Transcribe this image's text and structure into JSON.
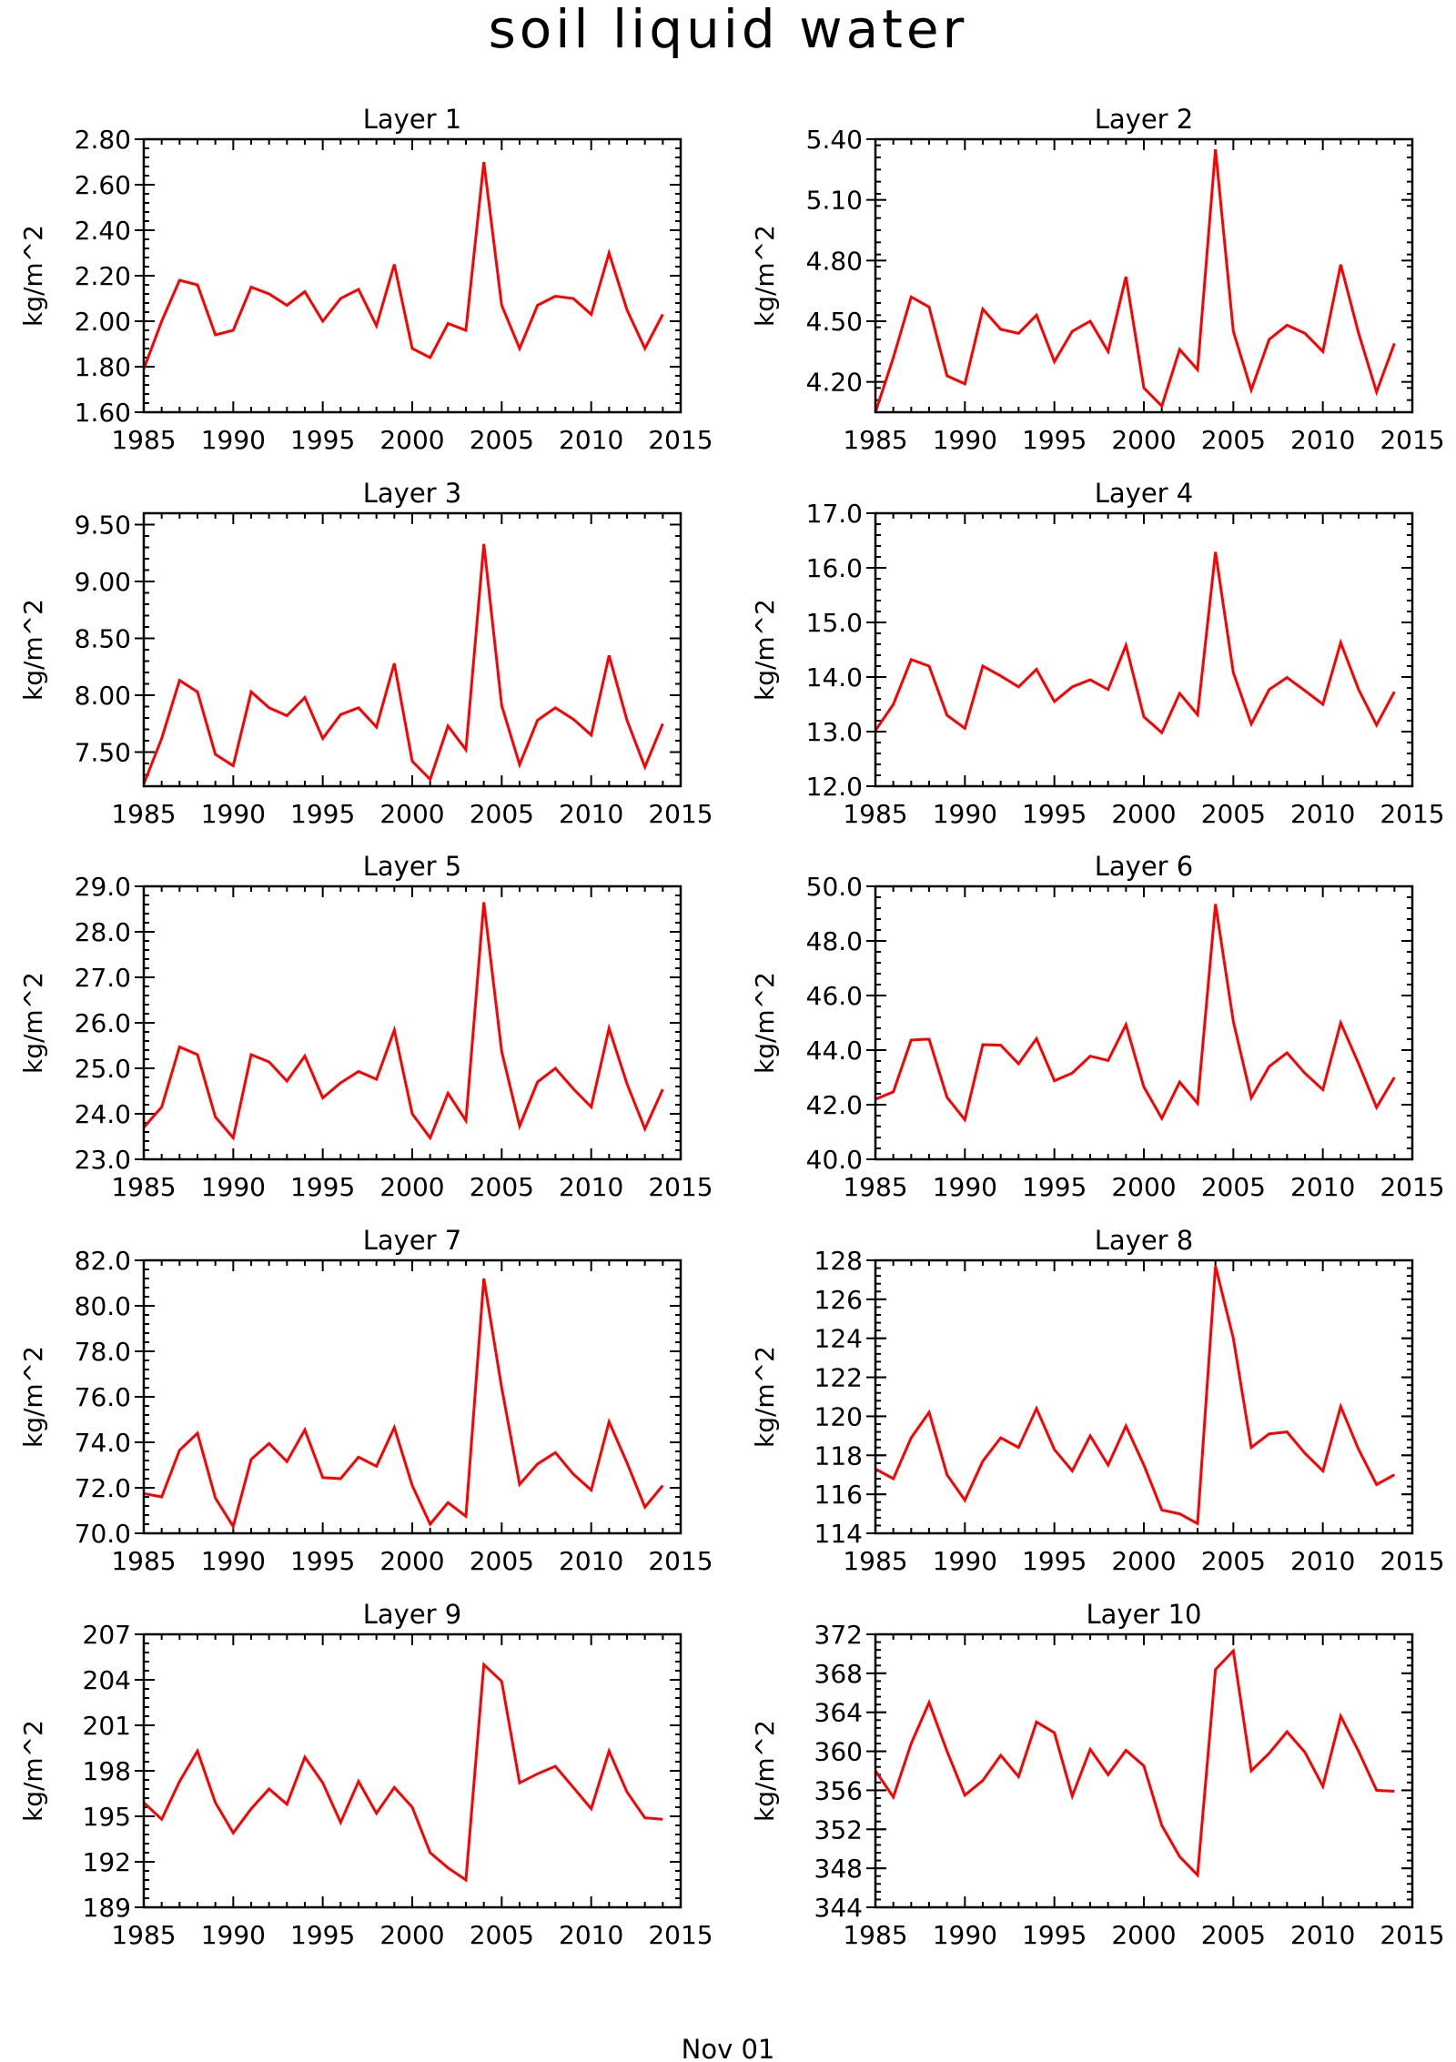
{
  "figure": {
    "title": "soil liquid water",
    "footer": "Nov 01"
  },
  "chart_data": [
    {
      "type": "line",
      "title": "Layer 1",
      "ylabel": "kg/m^2",
      "xlim": [
        1985,
        2015
      ],
      "ylim": [
        1.6,
        2.8
      ],
      "xticks": [
        1985,
        1990,
        1995,
        2000,
        2005,
        2010,
        2015
      ],
      "xtick_labels": [
        "1985",
        "1990",
        "1995",
        "2000",
        "2005",
        "2010",
        "2015"
      ],
      "yticks": [
        1.6,
        1.8,
        2.0,
        2.2,
        2.4,
        2.6,
        2.8
      ],
      "ytick_labels": [
        "1.60",
        "1.80",
        "2.00",
        "2.20",
        "2.40",
        "2.60",
        "2.80"
      ],
      "series": [
        {
          "color": "#ff0000",
          "x": [
            1985,
            1986,
            1987,
            1988,
            1989,
            1990,
            1991,
            1992,
            1993,
            1994,
            1995,
            1996,
            1997,
            1998,
            1999,
            2000,
            2001,
            2002,
            2003,
            2004,
            2005,
            2006,
            2007,
            2008,
            2009,
            2010,
            2011,
            2012,
            2013,
            2014
          ],
          "values": [
            1.79,
            2.0,
            2.18,
            2.16,
            1.94,
            1.96,
            2.15,
            2.12,
            2.07,
            2.13,
            2.0,
            2.1,
            2.14,
            1.98,
            2.25,
            1.88,
            1.84,
            1.99,
            1.96,
            2.7,
            2.07,
            1.88,
            2.07,
            2.11,
            2.1,
            2.03,
            2.3,
            2.05,
            1.88,
            2.03
          ]
        }
      ]
    },
    {
      "type": "line",
      "title": "Layer 2",
      "ylabel": "kg/m^2",
      "xlim": [
        1985,
        2015
      ],
      "ylim": [
        4.05,
        5.4
      ],
      "xticks": [
        1985,
        1990,
        1995,
        2000,
        2005,
        2010,
        2015
      ],
      "xtick_labels": [
        "1985",
        "1990",
        "1995",
        "2000",
        "2005",
        "2010",
        "2015"
      ],
      "yticks": [
        4.2,
        4.5,
        4.8,
        5.1,
        5.4
      ],
      "ytick_labels": [
        "4.20",
        "4.50",
        "4.80",
        "5.10",
        "5.40"
      ],
      "series": [
        {
          "color": "#ff0000",
          "x": [
            1985,
            1986,
            1987,
            1988,
            1989,
            1990,
            1991,
            1992,
            1993,
            1994,
            1995,
            1996,
            1997,
            1998,
            1999,
            2000,
            2001,
            2002,
            2003,
            2004,
            2005,
            2006,
            2007,
            2008,
            2009,
            2010,
            2011,
            2012,
            2013,
            2014
          ],
          "values": [
            4.05,
            4.32,
            4.62,
            4.57,
            4.23,
            4.19,
            4.56,
            4.46,
            4.44,
            4.53,
            4.3,
            4.45,
            4.5,
            4.35,
            4.72,
            4.17,
            4.08,
            4.36,
            4.26,
            5.35,
            4.45,
            4.16,
            4.41,
            4.48,
            4.44,
            4.35,
            4.78,
            4.44,
            4.15,
            4.39
          ]
        }
      ]
    },
    {
      "type": "line",
      "title": "Layer 3",
      "ylabel": "kg/m^2",
      "xlim": [
        1985,
        2015
      ],
      "ylim": [
        7.2,
        9.6
      ],
      "xticks": [
        1985,
        1990,
        1995,
        2000,
        2005,
        2010,
        2015
      ],
      "xtick_labels": [
        "1985",
        "1990",
        "1995",
        "2000",
        "2005",
        "2010",
        "2015"
      ],
      "yticks": [
        7.5,
        8.0,
        8.5,
        9.0,
        9.5
      ],
      "ytick_labels": [
        "7.50",
        "8.00",
        "8.50",
        "9.00",
        "9.50"
      ],
      "series": [
        {
          "color": "#ff0000",
          "x": [
            1985,
            1986,
            1987,
            1988,
            1989,
            1990,
            1991,
            1992,
            1993,
            1994,
            1995,
            1996,
            1997,
            1998,
            1999,
            2000,
            2001,
            2002,
            2003,
            2004,
            2005,
            2006,
            2007,
            2008,
            2009,
            2010,
            2011,
            2012,
            2013,
            2014
          ],
          "values": [
            7.22,
            7.62,
            8.13,
            8.03,
            7.48,
            7.38,
            8.03,
            7.89,
            7.82,
            7.98,
            7.62,
            7.83,
            7.89,
            7.72,
            8.28,
            7.42,
            7.26,
            7.73,
            7.52,
            9.33,
            7.91,
            7.39,
            7.78,
            7.89,
            7.79,
            7.65,
            8.35,
            7.78,
            7.37,
            7.75
          ]
        }
      ]
    },
    {
      "type": "line",
      "title": "Layer 4",
      "ylabel": "kg/m^2",
      "xlim": [
        1985,
        2015
      ],
      "ylim": [
        12.0,
        17.0
      ],
      "xticks": [
        1985,
        1990,
        1995,
        2000,
        2005,
        2010,
        2015
      ],
      "xtick_labels": [
        "1985",
        "1990",
        "1995",
        "2000",
        "2005",
        "2010",
        "2015"
      ],
      "yticks": [
        12.0,
        13.0,
        14.0,
        15.0,
        16.0,
        17.0
      ],
      "ytick_labels": [
        "12.0",
        "13.0",
        "14.0",
        "15.0",
        "16.0",
        "17.0"
      ],
      "series": [
        {
          "color": "#ff0000",
          "x": [
            1985,
            1986,
            1987,
            1988,
            1989,
            1990,
            1991,
            1992,
            1993,
            1994,
            1995,
            1996,
            1997,
            1998,
            1999,
            2000,
            2001,
            2002,
            2003,
            2004,
            2005,
            2006,
            2007,
            2008,
            2009,
            2010,
            2011,
            2012,
            2013,
            2014
          ],
          "values": [
            13.02,
            13.5,
            14.32,
            14.2,
            13.3,
            13.06,
            14.2,
            14.02,
            13.82,
            14.14,
            13.55,
            13.82,
            13.95,
            13.77,
            14.58,
            13.27,
            12.98,
            13.7,
            13.31,
            16.29,
            14.08,
            13.14,
            13.77,
            13.99,
            13.75,
            13.5,
            14.63,
            13.77,
            13.12,
            13.73
          ]
        }
      ]
    },
    {
      "type": "line",
      "title": "Layer 5",
      "ylabel": "kg/m^2",
      "xlim": [
        1985,
        2015
      ],
      "ylim": [
        23.0,
        29.0
      ],
      "xticks": [
        1985,
        1990,
        1995,
        2000,
        2005,
        2010,
        2015
      ],
      "xtick_labels": [
        "1985",
        "1990",
        "1995",
        "2000",
        "2005",
        "2010",
        "2015"
      ],
      "yticks": [
        23.0,
        24.0,
        25.0,
        26.0,
        27.0,
        28.0,
        29.0
      ],
      "ytick_labels": [
        "23.0",
        "24.0",
        "25.0",
        "26.0",
        "27.0",
        "28.0",
        "29.0"
      ],
      "series": [
        {
          "color": "#ff0000",
          "x": [
            1985,
            1986,
            1987,
            1988,
            1989,
            1990,
            1991,
            1992,
            1993,
            1994,
            1995,
            1996,
            1997,
            1998,
            1999,
            2000,
            2001,
            2002,
            2003,
            2004,
            2005,
            2006,
            2007,
            2008,
            2009,
            2010,
            2011,
            2012,
            2013,
            2014
          ],
          "values": [
            23.7,
            24.15,
            25.47,
            25.3,
            23.93,
            23.47,
            25.3,
            25.14,
            24.72,
            25.27,
            24.35,
            24.68,
            24.93,
            24.76,
            25.84,
            24.0,
            23.47,
            24.45,
            23.85,
            28.65,
            25.37,
            23.73,
            24.7,
            25.0,
            24.55,
            24.15,
            25.88,
            24.66,
            23.67,
            24.54
          ]
        }
      ]
    },
    {
      "type": "line",
      "title": "Layer 6",
      "ylabel": "kg/m^2",
      "xlim": [
        1985,
        2015
      ],
      "ylim": [
        40.0,
        50.0
      ],
      "xticks": [
        1985,
        1990,
        1995,
        2000,
        2005,
        2010,
        2015
      ],
      "xtick_labels": [
        "1985",
        "1990",
        "1995",
        "2000",
        "2005",
        "2010",
        "2015"
      ],
      "yticks": [
        40.0,
        42.0,
        44.0,
        46.0,
        48.0,
        50.0
      ],
      "ytick_labels": [
        "40.0",
        "42.0",
        "44.0",
        "46.0",
        "48.0",
        "50.0"
      ],
      "series": [
        {
          "color": "#ff0000",
          "x": [
            1985,
            1986,
            1987,
            1988,
            1989,
            1990,
            1991,
            1992,
            1993,
            1994,
            1995,
            1996,
            1997,
            1998,
            1999,
            2000,
            2001,
            2002,
            2003,
            2004,
            2005,
            2006,
            2007,
            2008,
            2009,
            2010,
            2011,
            2012,
            2013,
            2014
          ],
          "values": [
            42.2,
            42.47,
            44.37,
            44.4,
            42.27,
            41.45,
            44.2,
            44.18,
            43.5,
            44.42,
            42.88,
            43.16,
            43.78,
            43.62,
            44.93,
            42.65,
            41.5,
            42.83,
            42.05,
            49.35,
            45.05,
            42.25,
            43.4,
            43.9,
            43.15,
            42.55,
            45.0,
            43.5,
            41.9,
            43.0
          ]
        }
      ]
    },
    {
      "type": "line",
      "title": "Layer 7",
      "ylabel": "kg/m^2",
      "xlim": [
        1985,
        2015
      ],
      "ylim": [
        70.0,
        82.0
      ],
      "xticks": [
        1985,
        1990,
        1995,
        2000,
        2005,
        2010,
        2015
      ],
      "xtick_labels": [
        "1985",
        "1990",
        "1995",
        "2000",
        "2005",
        "2010",
        "2015"
      ],
      "yticks": [
        70.0,
        72.0,
        74.0,
        76.0,
        78.0,
        80.0,
        82.0
      ],
      "ytick_labels": [
        "70.0",
        "72.0",
        "74.0",
        "76.0",
        "78.0",
        "80.0",
        "82.0"
      ],
      "series": [
        {
          "color": "#ff0000",
          "x": [
            1985,
            1986,
            1987,
            1988,
            1989,
            1990,
            1991,
            1992,
            1993,
            1994,
            1995,
            1996,
            1997,
            1998,
            1999,
            2000,
            2001,
            2002,
            2003,
            2004,
            2005,
            2006,
            2007,
            2008,
            2009,
            2010,
            2011,
            2012,
            2013,
            2014
          ],
          "values": [
            71.75,
            71.6,
            73.65,
            74.4,
            71.55,
            70.3,
            73.25,
            73.95,
            73.15,
            74.55,
            72.45,
            72.4,
            73.35,
            72.95,
            74.65,
            72.1,
            70.4,
            71.35,
            70.75,
            81.2,
            76.4,
            72.15,
            73.05,
            73.55,
            72.6,
            71.9,
            74.9,
            73.1,
            71.15,
            72.1
          ]
        }
      ]
    },
    {
      "type": "line",
      "title": "Layer 8",
      "ylabel": "kg/m^2",
      "xlim": [
        1985,
        2015
      ],
      "ylim": [
        114,
        128
      ],
      "xticks": [
        1985,
        1990,
        1995,
        2000,
        2005,
        2010,
        2015
      ],
      "xtick_labels": [
        "1985",
        "1990",
        "1995",
        "2000",
        "2005",
        "2010",
        "2015"
      ],
      "yticks": [
        114,
        116,
        118,
        120,
        122,
        124,
        126,
        128
      ],
      "ytick_labels": [
        "114",
        "116",
        "118",
        "120",
        "122",
        "124",
        "126",
        "128"
      ],
      "series": [
        {
          "color": "#ff0000",
          "x": [
            1985,
            1986,
            1987,
            1988,
            1989,
            1990,
            1991,
            1992,
            1993,
            1994,
            1995,
            1996,
            1997,
            1998,
            1999,
            2000,
            2001,
            2002,
            2003,
            2004,
            2005,
            2006,
            2007,
            2008,
            2009,
            2010,
            2011,
            2012,
            2013,
            2014
          ],
          "values": [
            117.3,
            116.8,
            118.9,
            120.2,
            117.0,
            115.7,
            117.7,
            118.9,
            118.4,
            120.4,
            118.3,
            117.2,
            119.0,
            117.5,
            119.5,
            117.5,
            115.2,
            115.0,
            114.5,
            127.7,
            124.0,
            118.4,
            119.1,
            119.2,
            118.1,
            117.2,
            120.5,
            118.3,
            116.5,
            117.0
          ]
        }
      ]
    },
    {
      "type": "line",
      "title": "Layer 9",
      "ylabel": "kg/m^2",
      "xlim": [
        1985,
        2015
      ],
      "ylim": [
        189,
        207
      ],
      "xticks": [
        1985,
        1990,
        1995,
        2000,
        2005,
        2010,
        2015
      ],
      "xtick_labels": [
        "1985",
        "1990",
        "1995",
        "2000",
        "2005",
        "2010",
        "2015"
      ],
      "yticks": [
        189,
        192,
        195,
        198,
        201,
        204,
        207
      ],
      "ytick_labels": [
        "189",
        "192",
        "195",
        "198",
        "201",
        "204",
        "207"
      ],
      "series": [
        {
          "color": "#ff0000",
          "x": [
            1985,
            1986,
            1987,
            1988,
            1989,
            1990,
            1991,
            1992,
            1993,
            1994,
            1995,
            1996,
            1997,
            1998,
            1999,
            2000,
            2001,
            2002,
            2003,
            2004,
            2005,
            2006,
            2007,
            2008,
            2009,
            2010,
            2011,
            2012,
            2013,
            2014
          ],
          "values": [
            195.9,
            194.8,
            197.3,
            199.3,
            195.9,
            193.9,
            195.5,
            196.8,
            195.8,
            198.9,
            197.2,
            194.6,
            197.3,
            195.2,
            196.9,
            195.6,
            192.6,
            191.6,
            190.8,
            205.0,
            203.9,
            197.2,
            197.8,
            198.3,
            196.9,
            195.5,
            199.3,
            196.6,
            194.9,
            194.8
          ]
        }
      ]
    },
    {
      "type": "line",
      "title": "Layer 10",
      "ylabel": "kg/m^2",
      "xlim": [
        1985,
        2015
      ],
      "ylim": [
        344,
        372
      ],
      "xticks": [
        1985,
        1990,
        1995,
        2000,
        2005,
        2010,
        2015
      ],
      "xtick_labels": [
        "1985",
        "1990",
        "1995",
        "2000",
        "2005",
        "2010",
        "2015"
      ],
      "yticks": [
        344,
        348,
        352,
        356,
        360,
        364,
        368,
        372
      ],
      "ytick_labels": [
        "344",
        "348",
        "352",
        "356",
        "360",
        "364",
        "368",
        "372"
      ],
      "series": [
        {
          "color": "#ff0000",
          "x": [
            1985,
            1986,
            1987,
            1988,
            1989,
            1990,
            1991,
            1992,
            1993,
            1994,
            1995,
            1996,
            1997,
            1998,
            1999,
            2000,
            2001,
            2002,
            2003,
            2004,
            2005,
            2006,
            2007,
            2008,
            2009,
            2010,
            2011,
            2012,
            2013,
            2014
          ],
          "values": [
            358.0,
            355.3,
            360.8,
            365.0,
            360.0,
            355.5,
            357.0,
            359.6,
            357.4,
            363.0,
            361.9,
            355.4,
            360.2,
            357.6,
            360.1,
            358.5,
            352.4,
            349.2,
            347.3,
            368.4,
            370.3,
            358.0,
            359.8,
            362.0,
            359.9,
            356.4,
            363.6,
            360.0,
            356.0,
            355.9
          ]
        }
      ]
    }
  ]
}
